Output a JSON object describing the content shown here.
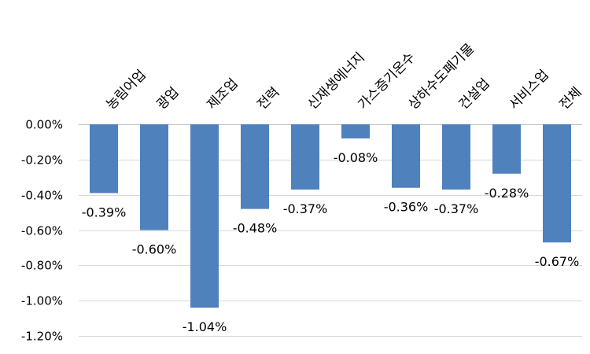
{
  "chart_data": {
    "type": "bar",
    "categories": [
      "농림어업",
      "광업",
      "제조업",
      "전력",
      "신재생에너지",
      "가스증기온수",
      "상하수도폐기물",
      "건설업",
      "서비스업",
      "전체"
    ],
    "values": [
      -0.39,
      -0.6,
      -1.04,
      -0.48,
      -0.37,
      -0.08,
      -0.36,
      -0.37,
      -0.28,
      -0.67
    ],
    "data_labels": [
      "-0.39%",
      "-0.60%",
      "-1.04%",
      "-0.48%",
      "-0.37%",
      "-0.08%",
      "-0.36%",
      "-0.37%",
      "-0.28%",
      "-0.67%"
    ],
    "y_ticks": [
      0,
      -0.2,
      -0.4,
      -0.6,
      -0.8,
      -1.0,
      -1.2
    ],
    "y_tick_labels": [
      "0.00%",
      "-0.20%",
      "-0.40%",
      "-0.60%",
      "-0.80%",
      "-1.00%",
      "-1.20%"
    ],
    "ylim": [
      -1.2,
      0
    ],
    "bar_color": "#4f81bd",
    "grid": true,
    "legend": "none",
    "x_labels_position": "top-rotated"
  }
}
